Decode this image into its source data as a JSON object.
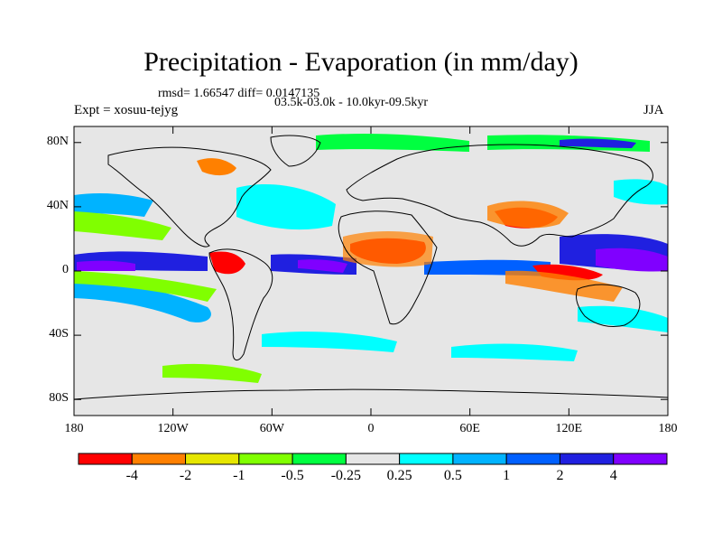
{
  "figure": {
    "title": "Precipitation - Evaporation (in mm/day)",
    "stats": "rmsd= 1.66547 diff= 0.0147135",
    "experiment": "Expt = xosuu-tejyg",
    "period": "03.5k-03.0k - 10.0kyr-09.5kyr",
    "season": "JJA"
  },
  "axes": {
    "lat_labels": [
      "80N",
      "40N",
      "0",
      "40S",
      "80S"
    ],
    "lat_values": [
      80,
      40,
      0,
      -40,
      -80
    ],
    "lon_labels": [
      "180",
      "120W",
      "60W",
      "0",
      "60E",
      "120E",
      "180"
    ],
    "lon_values": [
      -180,
      -120,
      -60,
      0,
      60,
      120,
      180
    ],
    "lat_range": [
      -90,
      90
    ],
    "lon_range": [
      -180,
      180
    ]
  },
  "colorbar": {
    "labels": [
      "-4",
      "-2",
      "-1",
      "-0.5",
      "-0.25",
      "0.25",
      "0.5",
      "1",
      "2",
      "4"
    ],
    "colors": [
      "#ff0000",
      "#ff8000",
      "#e6e600",
      "#80ff00",
      "#00ff40",
      "#e6e6e6",
      "#00ffff",
      "#00b3ff",
      "#0060ff",
      "#2020e0",
      "#8000ff"
    ]
  },
  "map_colors": {
    "ocean_background": "#e6e6e6",
    "coastline": "#000000"
  }
}
